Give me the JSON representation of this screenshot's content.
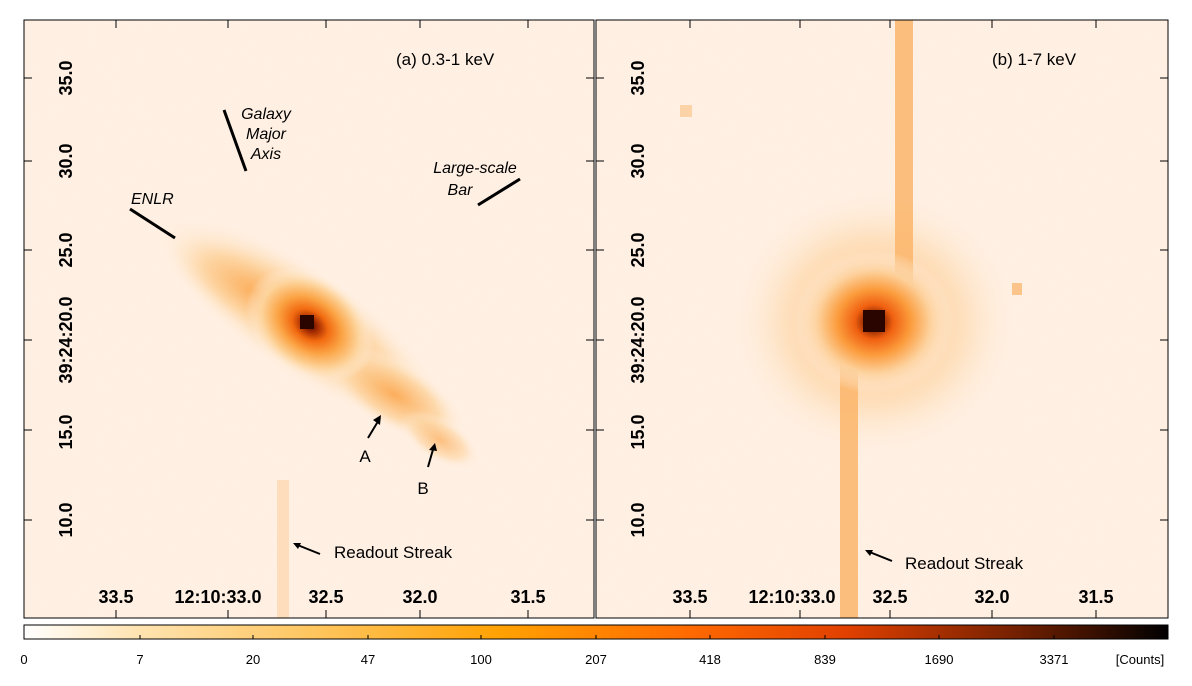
{
  "panels": [
    {
      "id": "a",
      "title": "(a) 0.3-1 keV",
      "y_ticks": [
        "35.0",
        "30.0",
        "25.0",
        "39:24:20.0",
        "15.0",
        "10.0"
      ],
      "x_ticks": [
        "33.5",
        "12:10:33.0",
        "32.5",
        "32.0",
        "31.5"
      ],
      "annotations": {
        "galaxy_axis": [
          "Galaxy",
          "Major",
          "Axis"
        ],
        "large_bar": [
          "Large-scale",
          "Bar"
        ],
        "enlr": "ENLR",
        "knot_a": "A",
        "knot_b": "B",
        "readout": "Readout Streak"
      }
    },
    {
      "id": "b",
      "title": "(b) 1-7 keV",
      "y_ticks": [
        "35.0",
        "30.0",
        "25.0",
        "39:24:20.0",
        "15.0",
        "10.0"
      ],
      "x_ticks": [
        "33.5",
        "12:10:33.0",
        "32.5",
        "32.0",
        "31.5"
      ],
      "annotations": {
        "readout": "Readout Streak"
      }
    }
  ],
  "colorbar": {
    "labels": [
      "0",
      "7",
      "20",
      "47",
      "100",
      "207",
      "418",
      "839",
      "1690",
      "3371"
    ],
    "unit": "[Counts]",
    "colormap": "heat",
    "colors": [
      "#ffffff",
      "#ffd98a",
      "#ffa000",
      "#ff6a00",
      "#e04000",
      "#7a2200",
      "#000000"
    ]
  }
}
